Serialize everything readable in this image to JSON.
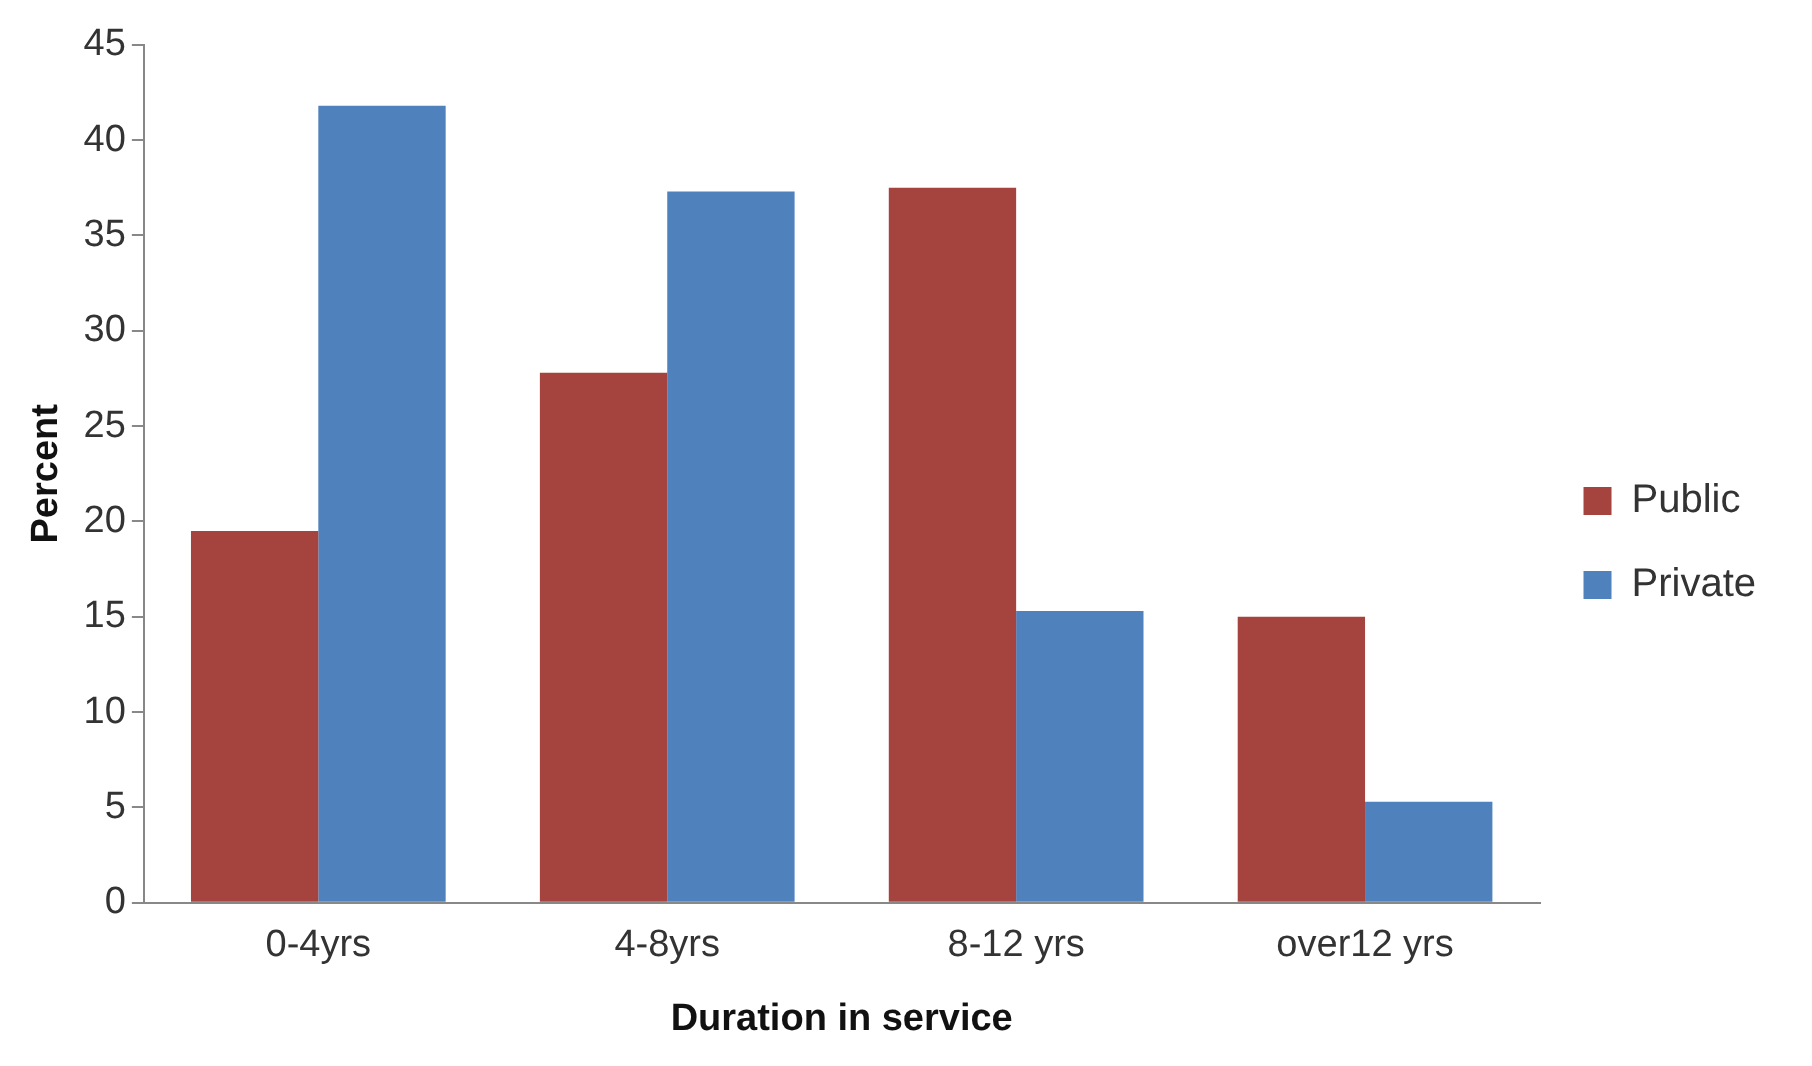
{
  "chart_data": {
    "type": "bar",
    "xlabel": "Duration in service",
    "ylabel": "Percent",
    "categories": [
      "0-4yrs",
      "4-8yrs",
      "8-12 yrs",
      "over12 yrs"
    ],
    "series": [
      {
        "name": "Public",
        "color": "#a5443f",
        "values": [
          19.5,
          27.8,
          37.5,
          15
        ]
      },
      {
        "name": "Private",
        "color": "#4f81bd",
        "values": [
          41.8,
          37.3,
          15.3,
          5.3
        ]
      }
    ],
    "ylim": [
      0,
      45
    ],
    "yticks": [
      0,
      5,
      10,
      15,
      20,
      25,
      30,
      35,
      40,
      45
    ],
    "grid": false,
    "legend": "right"
  }
}
